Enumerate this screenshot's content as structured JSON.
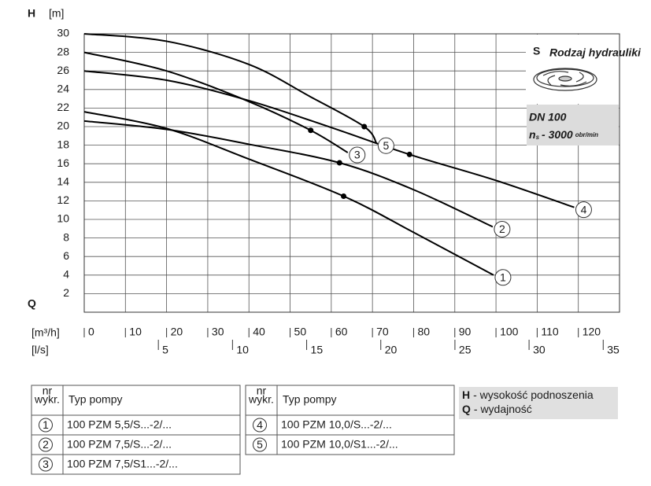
{
  "chart_data": {
    "type": "line",
    "y_label": "H",
    "y_unit": "[m]",
    "x_label": "Q",
    "x_unit": "[m³/h]",
    "x2_unit": "[l/s]",
    "xlim": [
      0,
      130
    ],
    "xticks": [
      0,
      10,
      20,
      30,
      40,
      50,
      60,
      70,
      80,
      90,
      100,
      110,
      120
    ],
    "x2lim": [
      0,
      36.1
    ],
    "x2ticks": [
      5,
      10,
      15,
      20,
      25,
      30,
      35
    ],
    "ylim": [
      0,
      30
    ],
    "yticks": [
      2,
      4,
      6,
      8,
      10,
      12,
      14,
      16,
      18,
      20,
      22,
      24,
      26,
      28,
      30
    ],
    "grid": true,
    "color": "#000000",
    "series": [
      {
        "name": "1",
        "pump": "100 PZM 5,5/S...-2/...",
        "x": [
          0,
          20,
          40,
          63,
          80,
          99.4
        ],
        "values": [
          21.6,
          19.8,
          16.5,
          12.5,
          8.6,
          4.0
        ],
        "point": {
          "x": 63,
          "y": 12.5
        }
      },
      {
        "name": "2",
        "pump": "100 PZM 7,5/S...-2/...",
        "x": [
          0,
          20,
          40,
          62,
          80,
          99.2
        ],
        "values": [
          20.6,
          19.7,
          18.1,
          16.1,
          13.2,
          9.2
        ],
        "point": {
          "x": 62,
          "y": 16.1
        }
      },
      {
        "name": "3",
        "pump": "100 PZM 7,5/S1...-2/...",
        "x": [
          0,
          20,
          40,
          55,
          64
        ],
        "values": [
          28,
          26,
          22.7,
          19.6,
          17.2
        ],
        "point": {
          "x": 55,
          "y": 19.6
        }
      },
      {
        "name": "4",
        "pump": "100 PZM 10,0/S...-2/...",
        "x": [
          0,
          20,
          40,
          60,
          79,
          100,
          119
        ],
        "values": [
          26,
          25,
          22.8,
          19.9,
          17,
          14.2,
          11.3
        ],
        "point": {
          "x": 79,
          "y": 17
        }
      },
      {
        "name": "5",
        "pump": "100 PZM 10,0/S1...-2/...",
        "x": [
          0,
          20,
          40,
          55,
          68,
          71
        ],
        "values": [
          30,
          29.2,
          26.7,
          23.2,
          20,
          18.2
        ],
        "point": {
          "x": 68,
          "y": 20
        }
      }
    ]
  },
  "badge": {
    "letter": "S",
    "label": "Rodzaj hydrauliki",
    "dn": "DN 100",
    "speed_symbol": "n",
    "speed_sub": "s",
    "speed_value": "- 3000",
    "speed_unit": "obr/min"
  },
  "pump_table": {
    "header_nr": [
      "nr",
      "wykr."
    ],
    "header_type": "Typ pompy"
  },
  "notes": [
    {
      "symbol": "H",
      "text": "- wysokość podnoszenia"
    },
    {
      "symbol": "Q",
      "text": "- wydajność"
    }
  ]
}
